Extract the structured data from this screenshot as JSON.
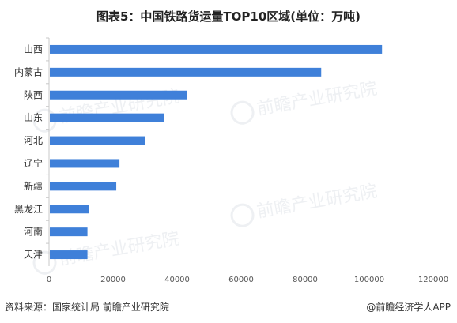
{
  "title": "图表5：中国铁路货运量TOP10区域(单位：万吨)",
  "footer": {
    "source": "资料来源：国家统计局 前瞻产业研究院",
    "credit": "@前瞻经济学人APP"
  },
  "watermark_text": "前瞻产业研究院",
  "colors": {
    "bar": "#3f80d9",
    "axis": "#c8c8c8",
    "background": "#ffffff"
  },
  "chart_data": {
    "type": "bar",
    "orientation": "horizontal",
    "title": "图表5：中国铁路货运量TOP10区域(单位：万吨)",
    "xlabel": "",
    "ylabel": "",
    "categories": [
      "山西",
      "内蒙古",
      "陕西",
      "山东",
      "河北",
      "辽宁",
      "新疆",
      "黑龙江",
      "河南",
      "天津"
    ],
    "values": [
      104000,
      85000,
      43000,
      36000,
      30000,
      22000,
      21000,
      12500,
      12000,
      12000
    ],
    "xlim": [
      0,
      120000
    ],
    "xticks": [
      0,
      20000,
      40000,
      60000,
      80000,
      100000,
      120000
    ],
    "grid": false
  }
}
